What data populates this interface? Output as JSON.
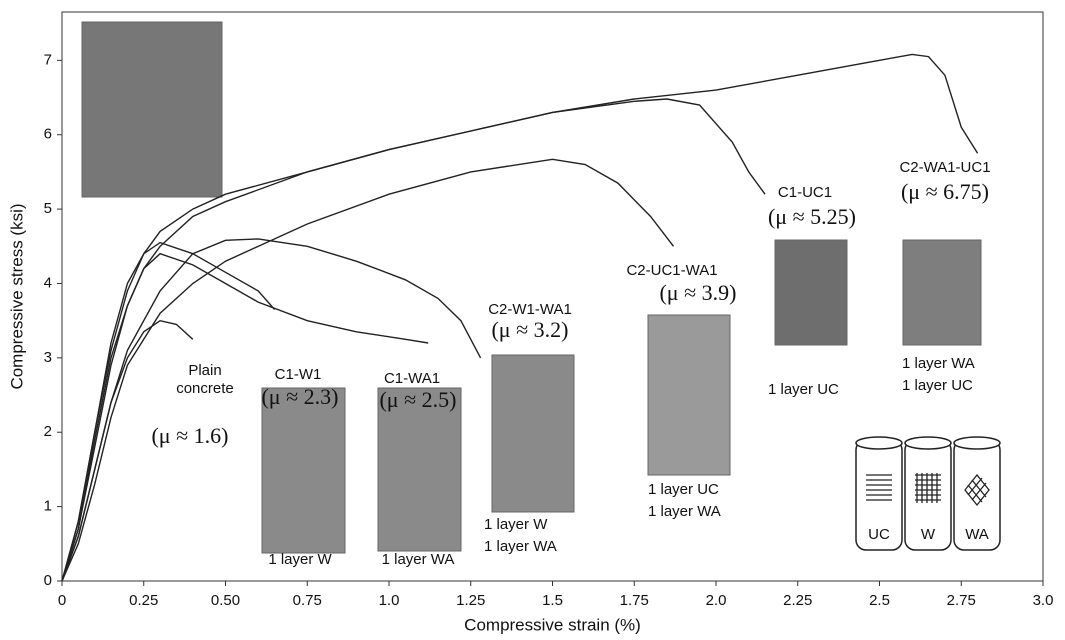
{
  "chart_data": {
    "type": "line",
    "x_label": "Compressive strain (%)",
    "y_label": "Compressive stress (ksi)",
    "xlim": [
      0,
      3.0
    ],
    "ylim": [
      0,
      7.65
    ],
    "xticks": [
      0,
      0.25,
      {
        "value": 0.5,
        "label": "0.50"
      },
      0.75,
      {
        "value": 1.0,
        "label": "1.0"
      },
      1.25,
      1.5,
      1.75,
      {
        "value": 2.0,
        "label": "2.0"
      },
      2.25,
      2.5,
      2.75,
      {
        "value": 3.0,
        "label": "3.0"
      }
    ],
    "yticks": [
      0,
      1,
      2,
      3,
      4,
      5,
      6,
      7
    ],
    "color": "#222222",
    "series": [
      {
        "name": "Plain concrete",
        "mu": "(μ ≈ 1.6)",
        "notes": [],
        "x": [
          0,
          0.05,
          0.1,
          0.15,
          0.2,
          0.25,
          0.3,
          0.35,
          0.4
        ],
        "values": [
          0,
          0.6,
          1.5,
          2.4,
          3.0,
          3.35,
          3.5,
          3.45,
          3.25
        ]
      },
      {
        "name": "C1-W1",
        "mu": "(μ ≈ 2.3)",
        "notes": [
          "1 layer W"
        ],
        "x": [
          0,
          0.05,
          0.1,
          0.15,
          0.2,
          0.25,
          0.3,
          0.4,
          0.5,
          0.6,
          0.65
        ],
        "values": [
          0,
          0.8,
          2.0,
          3.2,
          4.0,
          4.4,
          4.55,
          4.4,
          4.15,
          3.9,
          3.65
        ]
      },
      {
        "name": "C1-WA1",
        "mu": "(μ ≈ 2.5)",
        "notes": [
          "1 layer WA"
        ],
        "x": [
          0,
          0.05,
          0.1,
          0.15,
          0.2,
          0.25,
          0.3,
          0.4,
          0.5,
          0.6,
          0.75,
          0.9,
          1.05,
          1.12
        ],
        "values": [
          0,
          0.7,
          1.8,
          2.9,
          3.7,
          4.2,
          4.4,
          4.25,
          4.0,
          3.75,
          3.5,
          3.35,
          3.25,
          3.2
        ]
      },
      {
        "name": "C2-W1-WA1",
        "mu": "(μ ≈ 3.2)",
        "notes": [
          "1 layer W",
          "1 layer WA"
        ],
        "x": [
          0,
          0.05,
          0.1,
          0.15,
          0.2,
          0.3,
          0.4,
          0.5,
          0.6,
          0.75,
          0.9,
          1.05,
          1.15,
          1.22,
          1.28
        ],
        "values": [
          0,
          0.6,
          1.5,
          2.4,
          3.1,
          3.9,
          4.4,
          4.58,
          4.6,
          4.5,
          4.3,
          4.05,
          3.8,
          3.5,
          3.0
        ]
      },
      {
        "name": "C2-UC1-WA1",
        "mu": "(μ ≈ 3.9)",
        "notes": [
          "1 layer UC",
          "1 layer WA"
        ],
        "x": [
          0,
          0.05,
          0.1,
          0.15,
          0.2,
          0.3,
          0.4,
          0.5,
          0.75,
          1.0,
          1.25,
          1.5,
          1.6,
          1.7,
          1.8,
          1.87
        ],
        "values": [
          0,
          0.5,
          1.3,
          2.2,
          2.9,
          3.6,
          4.0,
          4.3,
          4.8,
          5.2,
          5.5,
          5.67,
          5.6,
          5.35,
          4.9,
          4.5
        ]
      },
      {
        "name": "C1-UC1",
        "mu": "(μ ≈ 5.25)",
        "notes": [
          "1 layer UC"
        ],
        "x": [
          0,
          0.05,
          0.1,
          0.15,
          0.2,
          0.25,
          0.3,
          0.4,
          0.5,
          0.75,
          1.0,
          1.25,
          1.5,
          1.75,
          1.85,
          1.95,
          2.05,
          2.1,
          2.15
        ],
        "values": [
          0,
          0.7,
          1.9,
          3.0,
          3.7,
          4.2,
          4.5,
          4.9,
          5.1,
          5.5,
          5.8,
          6.05,
          6.3,
          6.45,
          6.48,
          6.4,
          5.9,
          5.5,
          5.2
        ]
      },
      {
        "name": "C2-WA1-UC1",
        "mu": "(μ ≈ 6.75)",
        "notes": [
          "1 layer WA",
          "1 layer UC"
        ],
        "x": [
          0,
          0.05,
          0.1,
          0.15,
          0.2,
          0.25,
          0.3,
          0.4,
          0.5,
          0.75,
          1.0,
          1.25,
          1.5,
          1.75,
          2.0,
          2.25,
          2.5,
          2.6,
          2.65,
          2.7,
          2.75,
          2.8
        ],
        "values": [
          0,
          0.8,
          2.0,
          3.1,
          3.9,
          4.4,
          4.7,
          5.0,
          5.2,
          5.5,
          5.8,
          6.05,
          6.3,
          6.48,
          6.6,
          6.8,
          7.0,
          7.08,
          7.05,
          6.8,
          6.1,
          5.75
        ]
      }
    ],
    "cylinder_labels": [
      "UC",
      "W",
      "WA"
    ]
  }
}
